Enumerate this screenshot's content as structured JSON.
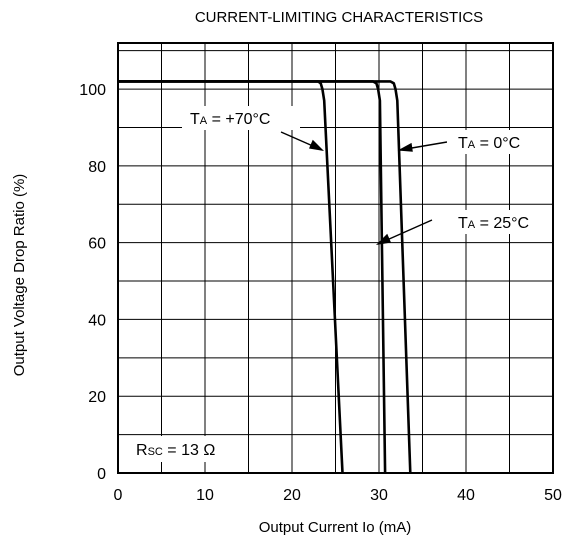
{
  "chart_data": {
    "type": "line",
    "title": "CURRENT-LIMITING CHARACTERISTICS",
    "xlabel": "Output Current Io (mA)",
    "ylabel": "Output Voltage Drop Ratio (%)",
    "xlim": [
      0,
      50
    ],
    "ylim": [
      0,
      112
    ],
    "x_ticks": [
      "0",
      "10",
      "20",
      "30",
      "40",
      "50"
    ],
    "y_ticks": [
      "0",
      "20",
      "40",
      "60",
      "80",
      "100"
    ],
    "grid": true,
    "series": [
      {
        "name": "TA = +70°C",
        "x": [
          0,
          23.0,
          23.3,
          23.5,
          23.7,
          25.8
        ],
        "y": [
          102,
          102,
          101.5,
          100,
          97,
          0
        ]
      },
      {
        "name": "TA = 25°C",
        "x": [
          0,
          29.3,
          29.7,
          29.9,
          30.1,
          30.7
        ],
        "y": [
          102,
          102,
          101.5,
          100,
          97,
          0
        ]
      },
      {
        "name": "TA = 0°C",
        "x": [
          0,
          31.3,
          31.7,
          31.9,
          32.1,
          33.6
        ],
        "y": [
          102,
          102,
          101.5,
          100,
          97,
          0
        ]
      }
    ],
    "annotations": [
      {
        "main": "T",
        "sub": "A",
        "rest": " = +70°C"
      },
      {
        "main": "T",
        "sub": "A",
        "rest": " = 0°C"
      },
      {
        "main": "T",
        "sub": "A",
        "rest": " = 25°C"
      },
      {
        "main": "R",
        "sub": "SC",
        "rest": " = 13 Ω"
      }
    ]
  }
}
